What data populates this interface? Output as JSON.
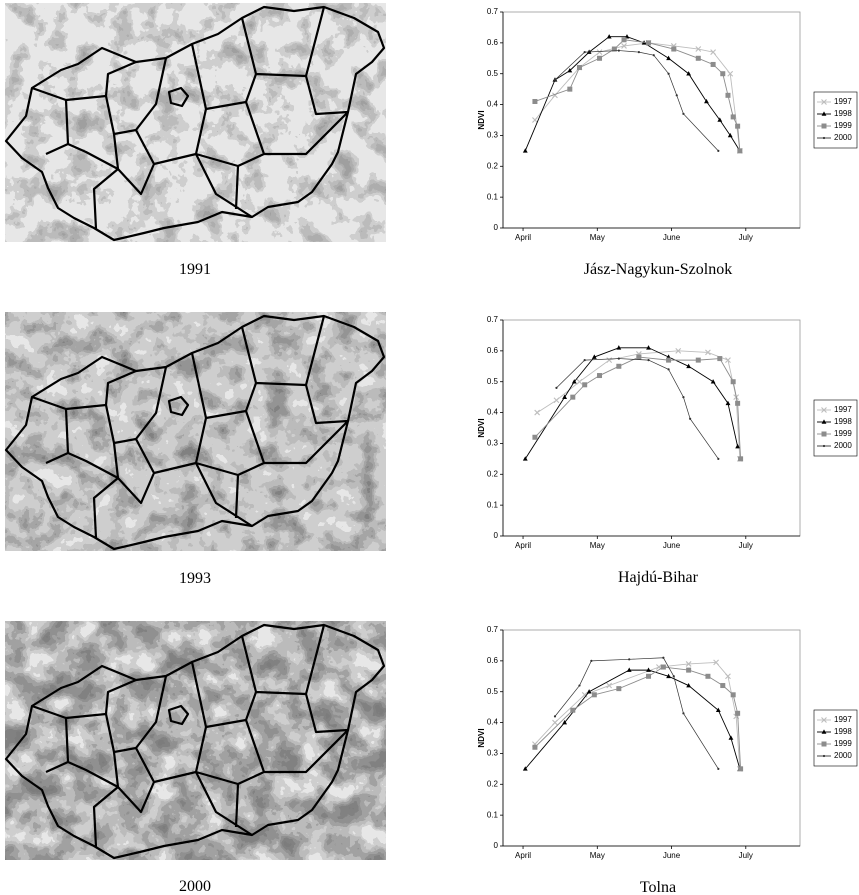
{
  "maps": [
    {
      "caption": "1991"
    },
    {
      "caption": "1993"
    },
    {
      "caption": "2000"
    }
  ],
  "chart_data": [
    {
      "type": "line",
      "title": "Jász-Nagykun-Szolnok",
      "y_label": "NDVI",
      "xlim": [
        3.73,
        7.73
      ],
      "xticks": [
        {
          "value": 4,
          "label": "April"
        },
        {
          "value": 5,
          "label": "May"
        },
        {
          "value": 6,
          "label": "June"
        },
        {
          "value": 7,
          "label": "July"
        }
      ],
      "ylim": [
        0,
        0.7
      ],
      "yticks": [
        0,
        0.1,
        0.2,
        0.3,
        0.4,
        0.5,
        0.6,
        0.7
      ],
      "legend": "right",
      "series": [
        {
          "name": "1997",
          "color": "#bdbdbd",
          "marker": "x",
          "x": [
            4.16,
            4.43,
            4.76,
            5.03,
            5.36,
            5.69,
            6.03,
            6.36,
            6.56,
            6.79,
            6.92
          ],
          "values": [
            0.35,
            0.43,
            0.52,
            0.57,
            0.59,
            0.6,
            0.59,
            0.58,
            0.57,
            0.5,
            0.25
          ]
        },
        {
          "name": "1998",
          "color": "#000000",
          "marker": "triangle",
          "x": [
            4.03,
            4.43,
            4.63,
            4.89,
            5.16,
            5.4,
            5.63,
            5.96,
            6.23,
            6.47,
            6.65,
            6.79,
            6.92
          ],
          "values": [
            0.25,
            0.48,
            0.51,
            0.57,
            0.62,
            0.62,
            0.6,
            0.55,
            0.5,
            0.41,
            0.35,
            0.3,
            0.25
          ]
        },
        {
          "name": "1999",
          "color": "#8c8c8c",
          "marker": "square",
          "x": [
            4.16,
            4.63,
            4.76,
            5.03,
            5.23,
            5.36,
            5.69,
            6.03,
            6.36,
            6.56,
            6.69,
            6.76,
            6.83,
            6.89,
            6.92
          ],
          "values": [
            0.41,
            0.45,
            0.52,
            0.55,
            0.58,
            0.61,
            0.6,
            0.58,
            0.55,
            0.53,
            0.5,
            0.43,
            0.36,
            0.33,
            0.25
          ]
        },
        {
          "name": "2000",
          "color": "#333333",
          "marker": "dot",
          "x": [
            4.43,
            4.83,
            5.29,
            5.56,
            5.76,
            5.96,
            6.07,
            6.16,
            6.63
          ],
          "values": [
            0.48,
            0.57,
            0.575,
            0.57,
            0.56,
            0.5,
            0.43,
            0.37,
            0.25
          ]
        }
      ]
    },
    {
      "type": "line",
      "title": "Hajdú-Bihar",
      "y_label": "NDVI",
      "xlim": [
        3.73,
        7.73
      ],
      "xticks": [
        {
          "value": 4,
          "label": "April"
        },
        {
          "value": 5,
          "label": "May"
        },
        {
          "value": 6,
          "label": "June"
        },
        {
          "value": 7,
          "label": "July"
        }
      ],
      "ylim": [
        0,
        0.7
      ],
      "yticks": [
        0,
        0.1,
        0.2,
        0.3,
        0.4,
        0.5,
        0.6,
        0.7
      ],
      "legend": "right",
      "series": [
        {
          "name": "1997",
          "color": "#bdbdbd",
          "marker": "x",
          "x": [
            4.19,
            4.45,
            4.76,
            5.16,
            5.56,
            6.09,
            6.49,
            6.76,
            6.87,
            6.92
          ],
          "values": [
            0.4,
            0.44,
            0.5,
            0.57,
            0.59,
            0.6,
            0.595,
            0.57,
            0.45,
            0.25
          ]
        },
        {
          "name": "1998",
          "color": "#000000",
          "marker": "triangle",
          "x": [
            4.03,
            4.56,
            4.69,
            4.96,
            5.29,
            5.69,
            5.96,
            6.23,
            6.56,
            6.76,
            6.89
          ],
          "values": [
            0.25,
            0.45,
            0.5,
            0.58,
            0.61,
            0.61,
            0.58,
            0.55,
            0.5,
            0.43,
            0.29
          ]
        },
        {
          "name": "1999",
          "color": "#8c8c8c",
          "marker": "square",
          "x": [
            4.16,
            4.67,
            4.83,
            5.03,
            5.29,
            5.56,
            5.96,
            6.36,
            6.65,
            6.83,
            6.89,
            6.93
          ],
          "values": [
            0.32,
            0.45,
            0.49,
            0.52,
            0.55,
            0.58,
            0.57,
            0.57,
            0.575,
            0.5,
            0.43,
            0.25
          ]
        },
        {
          "name": "2000",
          "color": "#333333",
          "marker": "dot",
          "x": [
            4.45,
            4.83,
            5.29,
            5.69,
            5.96,
            6.16,
            6.25,
            6.63
          ],
          "values": [
            0.48,
            0.57,
            0.575,
            0.57,
            0.54,
            0.45,
            0.38,
            0.25
          ]
        }
      ]
    },
    {
      "type": "line",
      "title": "Tolna",
      "y_label": "NDVI",
      "xlim": [
        3.73,
        7.73
      ],
      "xticks": [
        {
          "value": 4,
          "label": "April"
        },
        {
          "value": 5,
          "label": "May"
        },
        {
          "value": 6,
          "label": "June"
        },
        {
          "value": 7,
          "label": "July"
        }
      ],
      "ylim": [
        0,
        0.7
      ],
      "yticks": [
        0,
        0.1,
        0.2,
        0.3,
        0.4,
        0.5,
        0.6,
        0.7
      ],
      "legend": "right",
      "series": [
        {
          "name": "1997",
          "color": "#bdbdbd",
          "marker": "x",
          "x": [
            4.16,
            4.43,
            4.83,
            5.16,
            5.83,
            6.23,
            6.6,
            6.76,
            6.87,
            6.92
          ],
          "values": [
            0.33,
            0.4,
            0.49,
            0.52,
            0.58,
            0.59,
            0.595,
            0.55,
            0.42,
            0.25
          ]
        },
        {
          "name": "1998",
          "color": "#000000",
          "marker": "triangle",
          "x": [
            4.03,
            4.56,
            4.89,
            5.43,
            5.69,
            5.96,
            6.23,
            6.63,
            6.8,
            6.92
          ],
          "values": [
            0.25,
            0.4,
            0.5,
            0.57,
            0.57,
            0.55,
            0.52,
            0.44,
            0.35,
            0.25
          ]
        },
        {
          "name": "1999",
          "color": "#8c8c8c",
          "marker": "square",
          "x": [
            4.16,
            4.67,
            4.96,
            5.29,
            5.69,
            5.89,
            6.23,
            6.49,
            6.69,
            6.83,
            6.89,
            6.93
          ],
          "values": [
            0.32,
            0.44,
            0.49,
            0.51,
            0.55,
            0.58,
            0.57,
            0.55,
            0.52,
            0.49,
            0.43,
            0.25
          ]
        },
        {
          "name": "2000",
          "color": "#333333",
          "marker": "dot",
          "x": [
            4.43,
            4.76,
            4.92,
            5.43,
            5.89,
            6.03,
            6.16,
            6.63
          ],
          "values": [
            0.42,
            0.52,
            0.6,
            0.605,
            0.61,
            0.55,
            0.43,
            0.25
          ]
        }
      ]
    }
  ]
}
